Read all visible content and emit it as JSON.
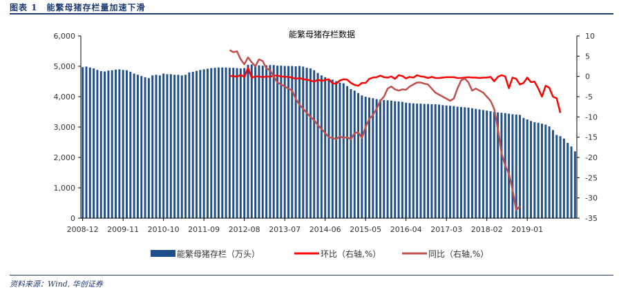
{
  "header": {
    "title": "图表 1　能繁母猪存栏量加速下滑"
  },
  "source": {
    "text": "资料来源：Wind, 华创证券"
  },
  "chart_data": {
    "type": "bar",
    "title": "能繁母猪存栏数据",
    "x_ticks": [
      "2008-12",
      "2009-11",
      "2010-10",
      "2011-09",
      "2012-08",
      "2013-07",
      "2014-06",
      "2015-05",
      "2016-04",
      "2017-03",
      "2018-02",
      "2019-01"
    ],
    "y_left": {
      "ylim": [
        0,
        6000
      ],
      "ticks": [
        "0",
        "1,000",
        "2,000",
        "3,000",
        "4,000",
        "5,000",
        "6,000"
      ]
    },
    "y_right": {
      "ylim": [
        -35,
        10
      ],
      "ticks": [
        "-35",
        "-30",
        "-25",
        "-20",
        "-15",
        "-10",
        "-5",
        "0",
        "5",
        "10"
      ]
    },
    "colors": {
      "bar": "#1f4e8c",
      "mom": "#ff0000",
      "yoy": "#c0504d"
    },
    "series": [
      {
        "name": "能繁母猪存栏（万头）",
        "axis": "left",
        "kind": "bar",
        "values": [
          4970,
          4990,
          4960,
          4930,
          4880,
          4840,
          4830,
          4860,
          4870,
          4890,
          4900,
          4880,
          4870,
          4820,
          4760,
          4720,
          4680,
          4640,
          4610,
          4700,
          4720,
          4700,
          4760,
          4740,
          4740,
          4720,
          4720,
          4700,
          4720,
          4800,
          4820,
          4850,
          4880,
          4900,
          4920,
          4940,
          4950,
          4960,
          4960,
          4960,
          4950,
          4950,
          4940,
          4930,
          4940,
          5050,
          5060,
          5040,
          5030,
          5020,
          5030,
          5040,
          5040,
          5020,
          5020,
          5010,
          5010,
          5010,
          5000,
          5010,
          4990,
          4950,
          4930,
          4870,
          4780,
          4700,
          4640,
          4580,
          4560,
          4510,
          4460,
          4440,
          4350,
          4250,
          4200,
          4120,
          4040,
          4000,
          3970,
          3950,
          3920,
          3900,
          3890,
          3880,
          3870,
          3850,
          3840,
          3830,
          3800,
          3790,
          3780,
          3770,
          3770,
          3760,
          3760,
          3750,
          3750,
          3740,
          3720,
          3710,
          3700,
          3690,
          3670,
          3660,
          3650,
          3640,
          3620,
          3600,
          3580,
          3560,
          3540,
          3520,
          3500,
          3480,
          3470,
          3460,
          3440,
          3420,
          3410,
          3400,
          3300,
          3250,
          3200,
          3160,
          3140,
          3110,
          3080,
          3020,
          2900,
          2740,
          2700,
          2620,
          2480,
          2360,
          2200
        ],
        "markers": []
      },
      {
        "name": "环比（右轴,%）",
        "axis": "right",
        "kind": "line",
        "values": [
          0.1,
          0.1,
          -0.1,
          0.4,
          -0.2,
          2.1,
          -0.3,
          0.0,
          0.0,
          -0.2,
          0.0,
          -0.1,
          0.2,
          0.2,
          0.0,
          -0.1,
          -0.1,
          -0.3,
          -0.6,
          -0.4,
          -0.7,
          -0.8,
          -1.0,
          -1.3,
          -0.8,
          -1.1,
          -0.9,
          -0.7,
          -1.7,
          -1.8,
          -1.0,
          -0.7,
          -0.8,
          -1.6,
          -2.1,
          -2.3,
          -1.6,
          -1.6,
          -0.6,
          -0.3,
          -0.2,
          0.2,
          -0.2,
          -0.3,
          0.0,
          -0.6,
          0.3,
          0.1,
          -0.5,
          -0.1,
          -0.3,
          0.3,
          0.0,
          -0.1,
          -0.4,
          -0.1,
          -0.4,
          -0.4,
          -0.3,
          -0.2,
          -0.2,
          -0.2,
          -0.4,
          -0.4,
          -0.3,
          -0.2,
          -0.3,
          -0.3,
          -0.4,
          -0.3,
          -0.3,
          -0.1,
          -1.2,
          -0.1,
          0.3,
          0.0,
          -2.9,
          -0.3,
          -0.6,
          -2.0,
          -1.6,
          -0.3,
          -1.4,
          -1.3,
          -3.0,
          -5.0,
          -2.3,
          -2.8,
          -5.0,
          -5.4,
          -9.0
        ],
        "markers": []
      },
      {
        "name": "同比（右轴,%）",
        "axis": "right",
        "kind": "line",
        "values": [
          6.5,
          6.0,
          6.2,
          4.2,
          3.0,
          4.7,
          3.5,
          2.5,
          4.2,
          3.8,
          2.0,
          1.5,
          0.0,
          -1.5,
          -2.0,
          -2.5,
          -3.0,
          -3.5,
          -5.5,
          -7.0,
          -8.0,
          -9.0,
          -10.0,
          -10.8,
          -12.0,
          -13.0,
          -14.0,
          -15.0,
          -15.2,
          -15.5,
          -14.8,
          -15.2,
          -15.0,
          -15.5,
          -14.0,
          -13.8,
          -15.2,
          -12.5,
          -10.5,
          -9.5,
          -8.0,
          -6.0,
          -5.0,
          -3.0,
          -2.5,
          -3.2,
          -3.5,
          -3.2,
          -3.3,
          -2.5,
          -2.0,
          -1.5,
          -1.5,
          -1.8,
          -2.0,
          -3.0,
          -4.0,
          -4.5,
          -5.0,
          -5.5,
          -6.0,
          -5.5,
          -3.0,
          -1.0,
          -0.5,
          -1.5,
          -3.5,
          -3.0,
          -3.5,
          -4.0,
          -5.0,
          -6.0,
          -8.0,
          -13.0,
          -19.0,
          -22.0,
          -24.0,
          -28.0,
          -33.0,
          -32.0
        ],
        "markers": []
      }
    ]
  }
}
